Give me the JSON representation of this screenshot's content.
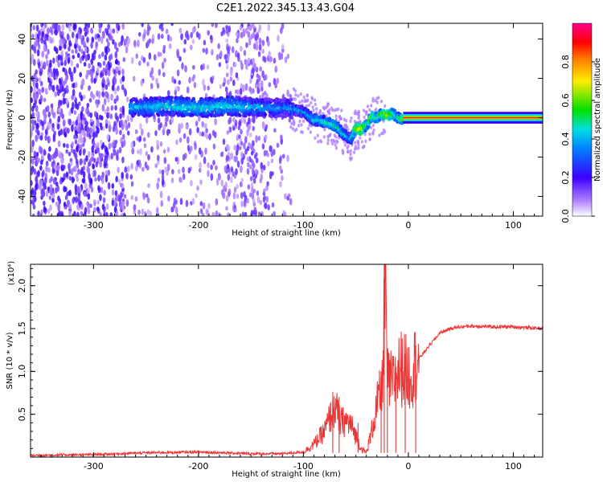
{
  "title": "C2E1.2022.345.13.43.G04",
  "chart_data": [
    {
      "type": "heatmap",
      "xlabel": "Height of straight line (km)",
      "ylabel": "Frequency (Hz)",
      "xlim": [
        -360,
        128
      ],
      "ylim": [
        -50,
        48
      ],
      "xticks": [
        -300,
        -200,
        -100,
        0,
        100
      ],
      "yticks": [
        -40,
        -20,
        0,
        20,
        40
      ],
      "colorbar": {
        "label": "Normalized spectral amplitude",
        "range": [
          0,
          1
        ],
        "ticks": [
          "0.0",
          "0.2",
          "0.4",
          "0.6",
          "0.8"
        ],
        "colormap": [
          "#ffffff",
          "#6a00ff",
          "#0066ff",
          "#00e0e0",
          "#00e000",
          "#ffee00",
          "#ff8800",
          "#ff0000",
          "#ff0090"
        ]
      },
      "ridge": {
        "x": [
          -265,
          -230,
          -200,
          -170,
          -140,
          -115,
          -100,
          -90,
          -80,
          -70,
          -62,
          -55,
          -50,
          -45,
          -40,
          -35,
          -30,
          -25,
          -20,
          -15,
          -10,
          -5,
          0,
          50,
          100,
          128
        ],
        "y": [
          5,
          6,
          5,
          6,
          5,
          5,
          3,
          -1,
          -2,
          -4,
          -8,
          -11,
          -5,
          -6,
          -4,
          1,
          0,
          2,
          1,
          2,
          0,
          -1,
          0,
          0,
          0,
          0
        ],
        "amplitude": [
          0.4,
          0.45,
          0.45,
          0.45,
          0.4,
          0.35,
          0.4,
          0.45,
          0.5,
          0.5,
          0.45,
          0.4,
          0.65,
          0.7,
          0.55,
          0.6,
          0.5,
          0.6,
          0.65,
          0.55,
          0.5,
          0.6,
          0.85,
          0.9,
          0.9,
          0.9
        ]
      }
    },
    {
      "type": "line",
      "xlabel": "Height of straight line (km)",
      "ylabel": "SNR (10 * v/v)",
      "y_multiplier": "(x10⁴)",
      "xlim": [
        -360,
        128
      ],
      "ylim": [
        0,
        2.25
      ],
      "xticks": [
        -300,
        -200,
        -100,
        0,
        100
      ],
      "yticks": [
        0.5,
        1.0,
        1.5,
        2.0
      ],
      "color": "#ee3333",
      "x": [
        -360,
        -300,
        -250,
        -200,
        -150,
        -120,
        -100,
        -90,
        -80,
        -75,
        -70,
        -65,
        -60,
        -55,
        -50,
        -45,
        -40,
        -35,
        -30,
        -25,
        -22,
        -20,
        -15,
        -10,
        -5,
        0,
        10,
        20,
        30,
        40,
        50,
        60,
        80,
        100,
        128
      ],
      "y": [
        0.02,
        0.03,
        0.05,
        0.06,
        0.04,
        0.04,
        0.06,
        0.15,
        0.3,
        0.45,
        0.6,
        0.4,
        0.42,
        0.38,
        0.25,
        0.1,
        0.05,
        0.3,
        0.6,
        0.8,
        2.2,
        0.9,
        0.85,
        1.0,
        1.05,
        0.95,
        1.15,
        1.3,
        1.45,
        1.5,
        1.52,
        1.53,
        1.52,
        1.52,
        1.5
      ],
      "spikes": [
        {
          "x": -23,
          "y": 2.25
        },
        {
          "x": -72,
          "y": 0.68
        },
        {
          "x": -66,
          "y": 0.7
        },
        {
          "x": -48,
          "y": 0.4
        },
        {
          "x": -26,
          "y": 1.0
        },
        {
          "x": -20,
          "y": 1.25
        },
        {
          "x": -12,
          "y": 1.05
        },
        {
          "x": -3,
          "y": 1.2
        },
        {
          "x": 7,
          "y": 1.3
        }
      ]
    }
  ]
}
